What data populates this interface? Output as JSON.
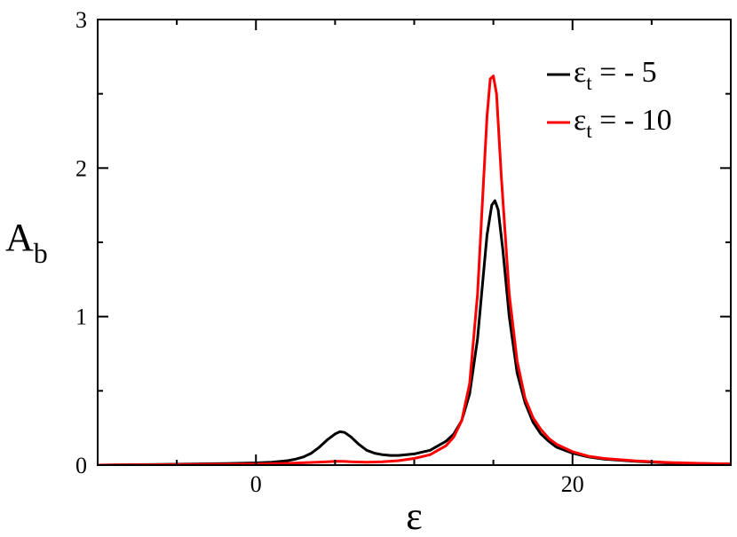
{
  "chart_data": {
    "type": "line",
    "title": "",
    "xlabel": "ε",
    "ylabel": {
      "base": "A",
      "sub": "b"
    },
    "xlim": [
      -10,
      30
    ],
    "ylim": [
      0,
      3
    ],
    "x_ticks": [
      0,
      20
    ],
    "x_minor_ticks": [
      -10,
      -5,
      5,
      10,
      15,
      25,
      30
    ],
    "x_tick_labels": [
      "0",
      "20"
    ],
    "y_ticks": [
      0,
      1,
      2,
      3
    ],
    "y_minor_ticks": [
      0.5,
      1.5,
      2.5
    ],
    "y_tick_labels": [
      "0",
      "1",
      "2",
      "3"
    ],
    "grid": false,
    "legend_position": "top-right",
    "series": [
      {
        "name": "ε_t = - 5",
        "legend": {
          "eps": "ε",
          "sub": "t",
          "rest": " = - 5"
        },
        "color": "#000000",
        "x": [
          -10,
          -6,
          -2,
          0,
          1,
          2,
          2.5,
          3,
          3.5,
          4,
          4.5,
          5,
          5.3,
          5.6,
          6,
          6.5,
          7,
          7.5,
          8,
          8.5,
          9,
          10,
          11,
          12,
          12.5,
          13,
          13.5,
          14,
          14.3,
          14.6,
          14.9,
          15.1,
          15.3,
          15.6,
          16,
          16.5,
          17,
          17.5,
          18,
          18.5,
          19,
          20,
          21,
          22,
          24,
          26,
          28,
          30
        ],
        "y": [
          0.0,
          0.005,
          0.01,
          0.015,
          0.02,
          0.03,
          0.04,
          0.055,
          0.08,
          0.12,
          0.17,
          0.21,
          0.225,
          0.22,
          0.19,
          0.14,
          0.1,
          0.08,
          0.07,
          0.065,
          0.065,
          0.075,
          0.1,
          0.16,
          0.21,
          0.3,
          0.48,
          0.85,
          1.2,
          1.55,
          1.75,
          1.78,
          1.72,
          1.45,
          1.0,
          0.62,
          0.42,
          0.29,
          0.21,
          0.16,
          0.12,
          0.08,
          0.055,
          0.04,
          0.025,
          0.015,
          0.01,
          0.008
        ]
      },
      {
        "name": "ε_t = - 10",
        "legend": {
          "eps": "ε",
          "sub": "t",
          "rest": " = - 10"
        },
        "color": "#ff0000",
        "x": [
          -10,
          -6,
          -2,
          0,
          2,
          3.5,
          4.5,
          5,
          5.5,
          6,
          7,
          8,
          9,
          10,
          11,
          12,
          12.5,
          13,
          13.5,
          14,
          14.3,
          14.6,
          14.8,
          15.0,
          15.2,
          15.5,
          16,
          16.5,
          17,
          17.5,
          18,
          18.5,
          19,
          20,
          21,
          22,
          24,
          26,
          28,
          30
        ],
        "y": [
          0.0,
          0.003,
          0.006,
          0.008,
          0.012,
          0.018,
          0.022,
          0.025,
          0.025,
          0.022,
          0.02,
          0.022,
          0.03,
          0.045,
          0.07,
          0.13,
          0.19,
          0.3,
          0.55,
          1.15,
          1.75,
          2.35,
          2.6,
          2.62,
          2.5,
          1.95,
          1.15,
          0.7,
          0.45,
          0.32,
          0.24,
          0.18,
          0.14,
          0.09,
          0.06,
          0.045,
          0.028,
          0.018,
          0.012,
          0.008
        ]
      }
    ]
  }
}
